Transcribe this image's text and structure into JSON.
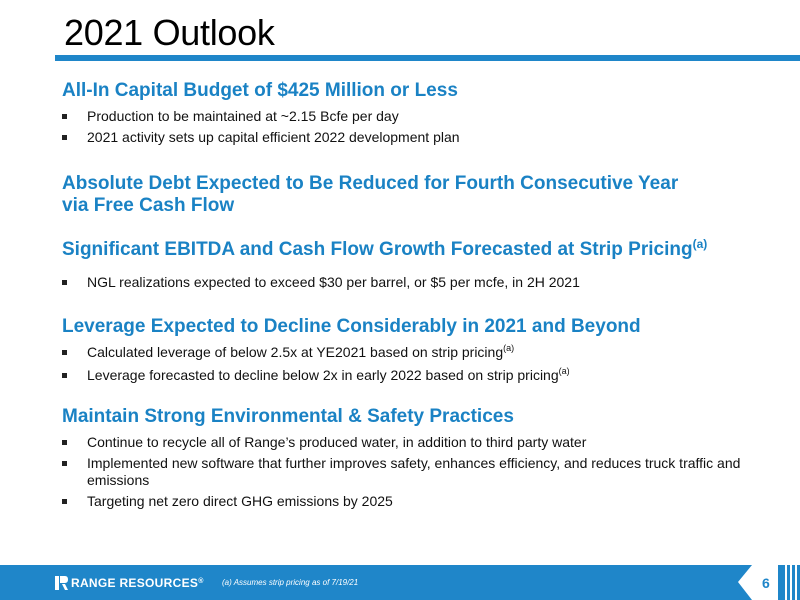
{
  "page": {
    "title": "2021 Outlook",
    "accent_color": "#1f86c9"
  },
  "sections": [
    {
      "heading": "All-In Capital Budget of $425 Million or Less",
      "bullets": [
        "Production to be maintained at ~2.15 Bcfe per day",
        "2021 activity sets up capital efficient 2022 development plan"
      ]
    },
    {
      "heading_line1": "Absolute Debt Expected to Be Reduced for Fourth Consecutive Year",
      "heading_line2": "via Free Cash Flow"
    },
    {
      "heading": "Significant EBITDA and Cash Flow Growth Forecasted at Strip Pricing",
      "heading_sup": "(a)",
      "bullets": [
        "NGL realizations expected to exceed $30 per barrel, or $5 per mcfe, in 2H 2021"
      ]
    },
    {
      "heading": "Leverage Expected to Decline Considerably in 2021 and Beyond",
      "bullets": [
        {
          "text": "Calculated leverage of below 2.5x at YE2021 based on strip pricing",
          "sup": "(a)"
        },
        {
          "text": "Leverage forecasted to decline below 2x in early 2022 based on strip pricing",
          "sup": "(a)"
        }
      ]
    },
    {
      "heading": "Maintain Strong Environmental & Safety Practices",
      "bullets": [
        "Continue to recycle all of Range’s produced water, in addition to third party water",
        "Implemented new software that further improves safety, enhances efficiency, and reduces truck traffic and emissions",
        "Targeting net zero direct GHG emissions by 2025"
      ]
    }
  ],
  "footer": {
    "logo_text": "RANGE RESOURCES",
    "logo_reg": "®",
    "footnote": "(a) Assumes strip pricing as of 7/19/21",
    "page_number": "6",
    "logo_icon": "range-r-logo-icon"
  }
}
